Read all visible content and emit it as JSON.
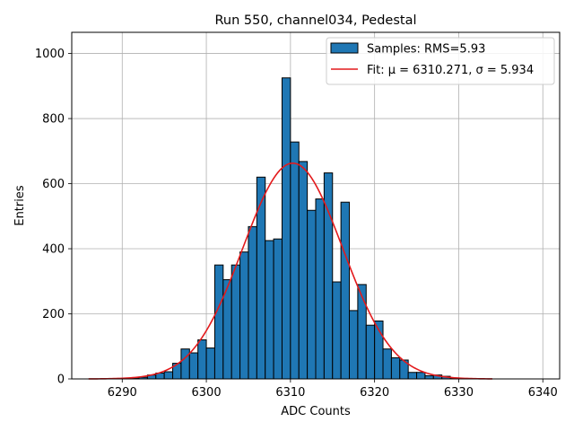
{
  "chart_data": {
    "type": "bar",
    "title": "Run 550, channel034, Pedestal",
    "xlabel": "ADC Counts",
    "ylabel": "Entries",
    "xlim": [
      6284,
      6342
    ],
    "ylim": [
      0,
      1065
    ],
    "xticks": [
      6290,
      6300,
      6310,
      6320,
      6330,
      6340
    ],
    "yticks": [
      0,
      200,
      400,
      600,
      800,
      1000
    ],
    "grid": true,
    "legend_position": "top-right",
    "colors": {
      "bars": "#1f77b4",
      "bar_edge": "#000000",
      "fit": "#e31a1c",
      "grid": "#b0b0b0"
    },
    "bin_width": 1,
    "series": [
      {
        "name": "Samples: RMS=5.93",
        "type": "histogram",
        "bin_left_edges": [
          6290,
          6291,
          6292,
          6293,
          6294,
          6295,
          6296,
          6297,
          6298,
          6299,
          6300,
          6301,
          6302,
          6303,
          6304,
          6305,
          6306,
          6307,
          6308,
          6309,
          6310,
          6311,
          6312,
          6313,
          6314,
          6315,
          6316,
          6317,
          6318,
          6319,
          6320,
          6321,
          6322,
          6323,
          6324,
          6325,
          6326,
          6327,
          6328,
          6329
        ],
        "values": [
          2,
          3,
          5,
          12,
          18,
          22,
          48,
          92,
          80,
          120,
          95,
          350,
          305,
          350,
          390,
          468,
          620,
          425,
          430,
          925,
          728,
          668,
          518,
          553,
          633,
          298,
          543,
          210,
          290,
          165,
          178,
          92,
          65,
          58,
          20,
          20,
          10,
          12,
          8,
          3
        ]
      },
      {
        "name": "Fit: μ = 6310.271, σ = 5.934",
        "type": "gaussian",
        "mu": 6310.271,
        "sigma": 5.934,
        "amplitude": 663,
        "x_range": [
          6286,
          6334
        ]
      }
    ]
  }
}
